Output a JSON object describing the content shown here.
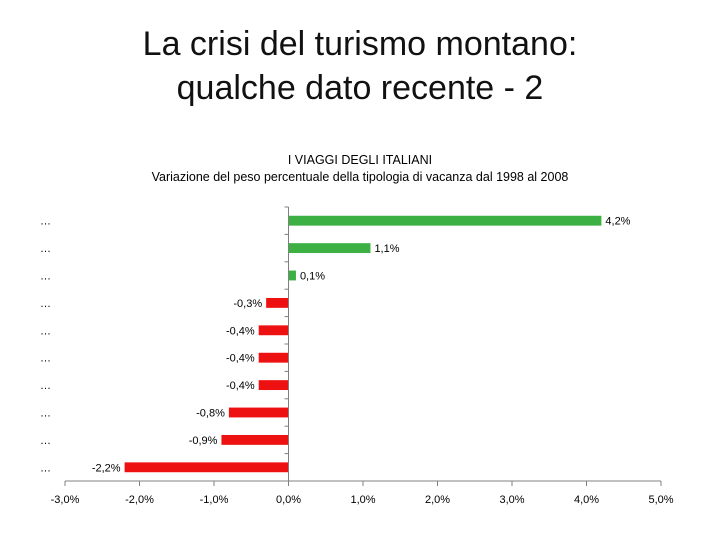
{
  "slide": {
    "title_line1": "La crisi del turismo montano:",
    "title_line2": "qualche dato recente - 2"
  },
  "chart_data": {
    "type": "bar",
    "orientation": "horizontal",
    "title": "I VIAGGI DEGLI ITALIANI",
    "subtitle": "Variazione del peso percentuale della tipologia di vacanza dal 1998 al 2008",
    "categories": [
      "…",
      "…",
      "…",
      "…",
      "…",
      "…",
      "…",
      "…",
      "…",
      "…"
    ],
    "values": [
      4.2,
      1.1,
      0.1,
      -0.3,
      -0.4,
      -0.4,
      -0.4,
      -0.8,
      -0.9,
      -2.2
    ],
    "data_labels": [
      "4,2%",
      "1,1%",
      "0,1%",
      "-0,3%",
      "-0,4%",
      "-0,4%",
      "-0,4%",
      "-0,8%",
      "-0,9%",
      "-2,2%"
    ],
    "xlim": [
      -3.0,
      5.0
    ],
    "x_ticks": [
      -3,
      -2,
      -1,
      0,
      1,
      2,
      3,
      4,
      5
    ],
    "x_tick_labels": [
      "-3,0%",
      "-2,0%",
      "-1,0%",
      "0,0%",
      "1,0%",
      "2,0%",
      "3,0%",
      "4,0%",
      "5,0%"
    ],
    "colors": {
      "positive": "#3cb043",
      "negative": "#ee1111",
      "axis": "#808080"
    },
    "grid": false,
    "legend": "none"
  }
}
